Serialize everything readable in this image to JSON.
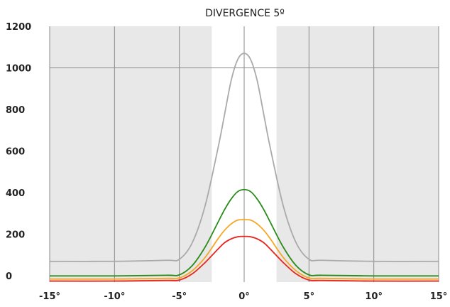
{
  "chart_data": {
    "type": "line",
    "title": "DIVERGENCE 5º",
    "xlabel": "",
    "ylabel": "",
    "xlim": [
      -15,
      15
    ],
    "ylim": [
      -30,
      1200
    ],
    "x_ticks": [
      {
        "value": -15,
        "label": "-15°"
      },
      {
        "value": -10,
        "label": "-10°"
      },
      {
        "value": -5,
        "label": "-5°"
      },
      {
        "value": 0,
        "label": "0°"
      },
      {
        "value": 5,
        "label": "5°"
      },
      {
        "value": 10,
        "label": "10°"
      },
      {
        "value": 15,
        "label": "15°"
      }
    ],
    "y_ticks": [
      {
        "value": 0,
        "label": "0"
      },
      {
        "value": 200,
        "label": "200"
      },
      {
        "value": 400,
        "label": "400"
      },
      {
        "value": 600,
        "label": "600"
      },
      {
        "value": 800,
        "label": "800"
      },
      {
        "value": 1000,
        "label": "1000"
      },
      {
        "value": 1200,
        "label": "1200"
      }
    ],
    "shaded_regions": [
      [
        -15,
        -2.5
      ],
      [
        2.5,
        15
      ]
    ],
    "shade_color": "#e8e8e8",
    "grid": true,
    "grid_color": "#888888",
    "series": [
      {
        "color": "#aaaaaa",
        "x": [
          -15,
          -10,
          -6,
          -5,
          -4,
          -3,
          -2,
          -1.5,
          -1,
          -0.5,
          0,
          0.5,
          1,
          1.5,
          2,
          3,
          4,
          5,
          6,
          10,
          15
        ],
        "y": [
          70,
          70,
          75,
          80,
          160,
          340,
          620,
          780,
          940,
          1040,
          1070,
          1040,
          940,
          780,
          620,
          340,
          160,
          80,
          75,
          70,
          70
        ]
      },
      {
        "color": "#2a8a1a",
        "x": [
          -15,
          -10,
          -6,
          -5,
          -4,
          -3,
          -2,
          -1.5,
          -1,
          -0.5,
          0,
          0.5,
          1,
          1.5,
          2,
          3,
          4,
          5,
          6,
          10,
          15
        ],
        "y": [
          0,
          0,
          3,
          5,
          50,
          140,
          260,
          320,
          370,
          405,
          415,
          405,
          370,
          320,
          260,
          140,
          50,
          5,
          3,
          0,
          0
        ]
      },
      {
        "color": "#f5a623",
        "x": [
          -15,
          -10,
          -6,
          -5,
          -4,
          -3,
          -2,
          -1.5,
          -1,
          -0.5,
          0,
          0.5,
          1,
          1.5,
          2,
          3,
          4,
          5,
          6,
          10,
          15
        ],
        "y": [
          -15,
          -15,
          -12,
          -10,
          25,
          90,
          180,
          220,
          250,
          268,
          270,
          268,
          250,
          220,
          180,
          90,
          25,
          -10,
          -12,
          -15,
          -15
        ]
      },
      {
        "color": "#e8261c",
        "x": [
          -15,
          -10,
          -6,
          -5,
          -4,
          -3,
          -2,
          -1.5,
          -1,
          -0.5,
          0,
          0.5,
          1,
          1.5,
          2,
          3,
          4,
          5,
          6,
          10,
          15
        ],
        "y": [
          -25,
          -25,
          -22,
          -20,
          10,
          65,
          130,
          160,
          178,
          188,
          190,
          188,
          178,
          160,
          130,
          65,
          10,
          -20,
          -22,
          -25,
          -25
        ]
      }
    ]
  }
}
